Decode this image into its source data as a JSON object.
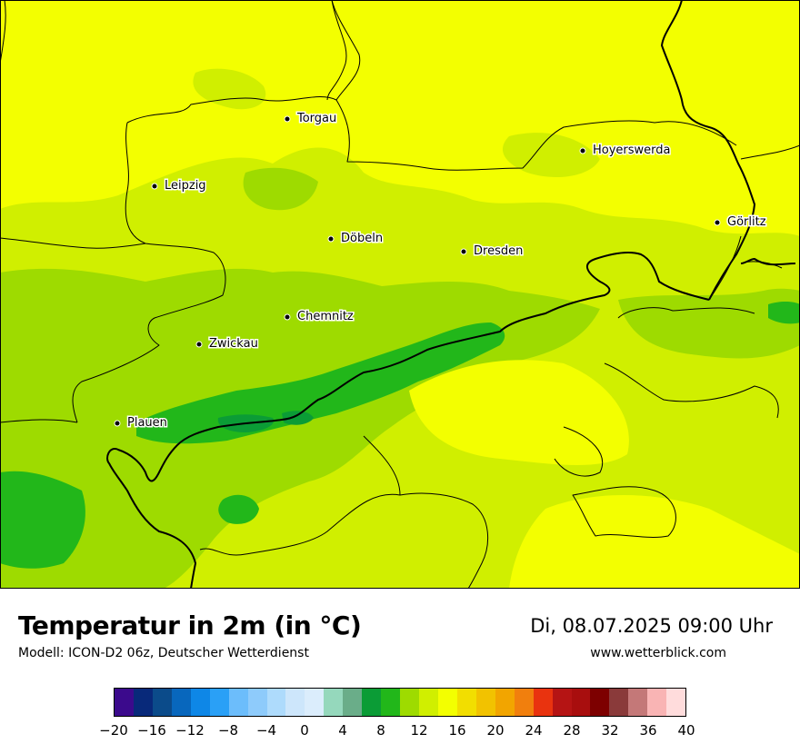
{
  "title": "Temperatur in 2m (in °C)",
  "subtitle": "Modell: ICON-D2 06z, Deutscher Wetterdienst",
  "datetime": "Di, 08.07.2025 09:00 Uhr",
  "website": "www.wetterblick.com",
  "cities": [
    {
      "name": "Torgau"
    },
    {
      "name": "Leipzig"
    },
    {
      "name": "Hoyerswerda"
    },
    {
      "name": "Görlitz"
    },
    {
      "name": "Döbeln"
    },
    {
      "name": "Dresden"
    },
    {
      "name": "Chemnitz"
    },
    {
      "name": "Zwickau"
    },
    {
      "name": "Plauen"
    }
  ],
  "colorbar": {
    "colors": [
      "#3b0a8c",
      "#08297a",
      "#0b4b8a",
      "#0867bd",
      "#0e87e7",
      "#2aa0f6",
      "#6cbdfb",
      "#8ecbfb",
      "#aedbfc",
      "#cde6fb",
      "#dbedfc",
      "#95d8bc",
      "#6aad89",
      "#0b9c36",
      "#22b71a",
      "#9edb00",
      "#d0ef00",
      "#f3ff00",
      "#f2de00",
      "#f2c200",
      "#f2a500",
      "#f17f0d",
      "#e9330f",
      "#b51414",
      "#a80e0e",
      "#7d0000",
      "#8a3a3a",
      "#c47878",
      "#f9b4b4",
      "#ffdcdc"
    ],
    "tick_labels": [
      "−20",
      "−16",
      "−12",
      "−8",
      "−4",
      "0",
      "4",
      "8",
      "12",
      "16",
      "20",
      "24",
      "28",
      "32",
      "36",
      "40"
    ],
    "min": -20,
    "max": 40
  }
}
